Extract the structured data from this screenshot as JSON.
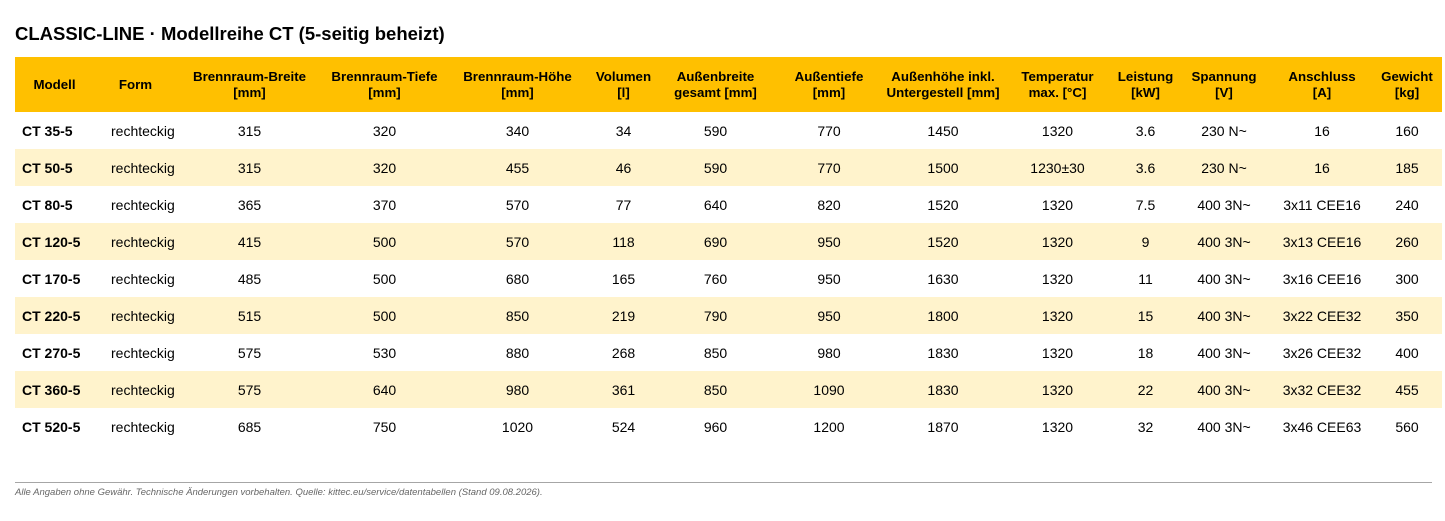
{
  "title": "CLASSIC-LINE · Modellreihe CT (5-seitig beheizt)",
  "colors": {
    "header_bg": "#ffc000",
    "stripe_bg": "#fff3cc",
    "footnote": "#666666"
  },
  "columns": [
    {
      "key": "modell",
      "line1": "Modell",
      "line2": ""
    },
    {
      "key": "form",
      "line1": "Form",
      "line2": ""
    },
    {
      "key": "breite",
      "line1": "Brennraum-Breite",
      "line2": "[mm]"
    },
    {
      "key": "tiefe",
      "line1": "Brennraum-Tiefe",
      "line2": "[mm]"
    },
    {
      "key": "hoehe",
      "line1": "Brennraum-Höhe",
      "line2": "[mm]"
    },
    {
      "key": "volumen",
      "line1": "Volumen",
      "line2": "[l]"
    },
    {
      "key": "aussenbreite",
      "line1": "Außenbreite",
      "line2": "gesamt [mm]"
    },
    {
      "key": "aussentiefe",
      "line1": "Außentiefe",
      "line2": "[mm]"
    },
    {
      "key": "aussenhoehe",
      "line1": "Außenhöhe inkl.",
      "line2": "Untergestell [mm]"
    },
    {
      "key": "temperatur",
      "line1": "Temperatur",
      "line2": "max. [°C]"
    },
    {
      "key": "leistung",
      "line1": "Leistung",
      "line2": "[kW]"
    },
    {
      "key": "spannung",
      "line1": "Spannung",
      "line2": "[V]"
    },
    {
      "key": "anschluss",
      "line1": "Anschluss",
      "line2": "[A]"
    },
    {
      "key": "gewicht",
      "line1": "Gewicht",
      "line2": "[kg]"
    }
  ],
  "rows": [
    [
      "CT 35-5",
      "rechteckig",
      "315",
      "320",
      "340",
      "34",
      "590",
      "770",
      "1450",
      "1320",
      "3.6",
      "230 N~",
      "16",
      "160"
    ],
    [
      "CT 50-5",
      "rechteckig",
      "315",
      "320",
      "455",
      "46",
      "590",
      "770",
      "1500",
      "1230±30",
      "3.6",
      "230 N~",
      "16",
      "185"
    ],
    [
      "CT 80-5",
      "rechteckig",
      "365",
      "370",
      "570",
      "77",
      "640",
      "820",
      "1520",
      "1320",
      "7.5",
      "400 3N~",
      "3x11 CEE16",
      "240"
    ],
    [
      "CT 120-5",
      "rechteckig",
      "415",
      "500",
      "570",
      "118",
      "690",
      "950",
      "1520",
      "1320",
      "9",
      "400 3N~",
      "3x13 CEE16",
      "260"
    ],
    [
      "CT 170-5",
      "rechteckig",
      "485",
      "500",
      "680",
      "165",
      "760",
      "950",
      "1630",
      "1320",
      "11",
      "400 3N~",
      "3x16 CEE16",
      "300"
    ],
    [
      "CT 220-5",
      "rechteckig",
      "515",
      "500",
      "850",
      "219",
      "790",
      "950",
      "1800",
      "1320",
      "15",
      "400 3N~",
      "3x22 CEE32",
      "350"
    ],
    [
      "CT 270-5",
      "rechteckig",
      "575",
      "530",
      "880",
      "268",
      "850",
      "980",
      "1830",
      "1320",
      "18",
      "400 3N~",
      "3x26 CEE32",
      "400"
    ],
    [
      "CT 360-5",
      "rechteckig",
      "575",
      "640",
      "980",
      "361",
      "850",
      "1090",
      "1830",
      "1320",
      "22",
      "400 3N~",
      "3x32 CEE32",
      "455"
    ],
    [
      "CT 520-5",
      "rechteckig",
      "685",
      "750",
      "1020",
      "524",
      "960",
      "1200",
      "1870",
      "1320",
      "32",
      "400 3N~",
      "3x46 CEE63",
      "560"
    ]
  ],
  "footnote": "Alle Angaben ohne Gewähr. Technische Änderungen vorbehalten. Quelle: kittec.eu/service/datentabellen (Stand 09.08.2026)."
}
